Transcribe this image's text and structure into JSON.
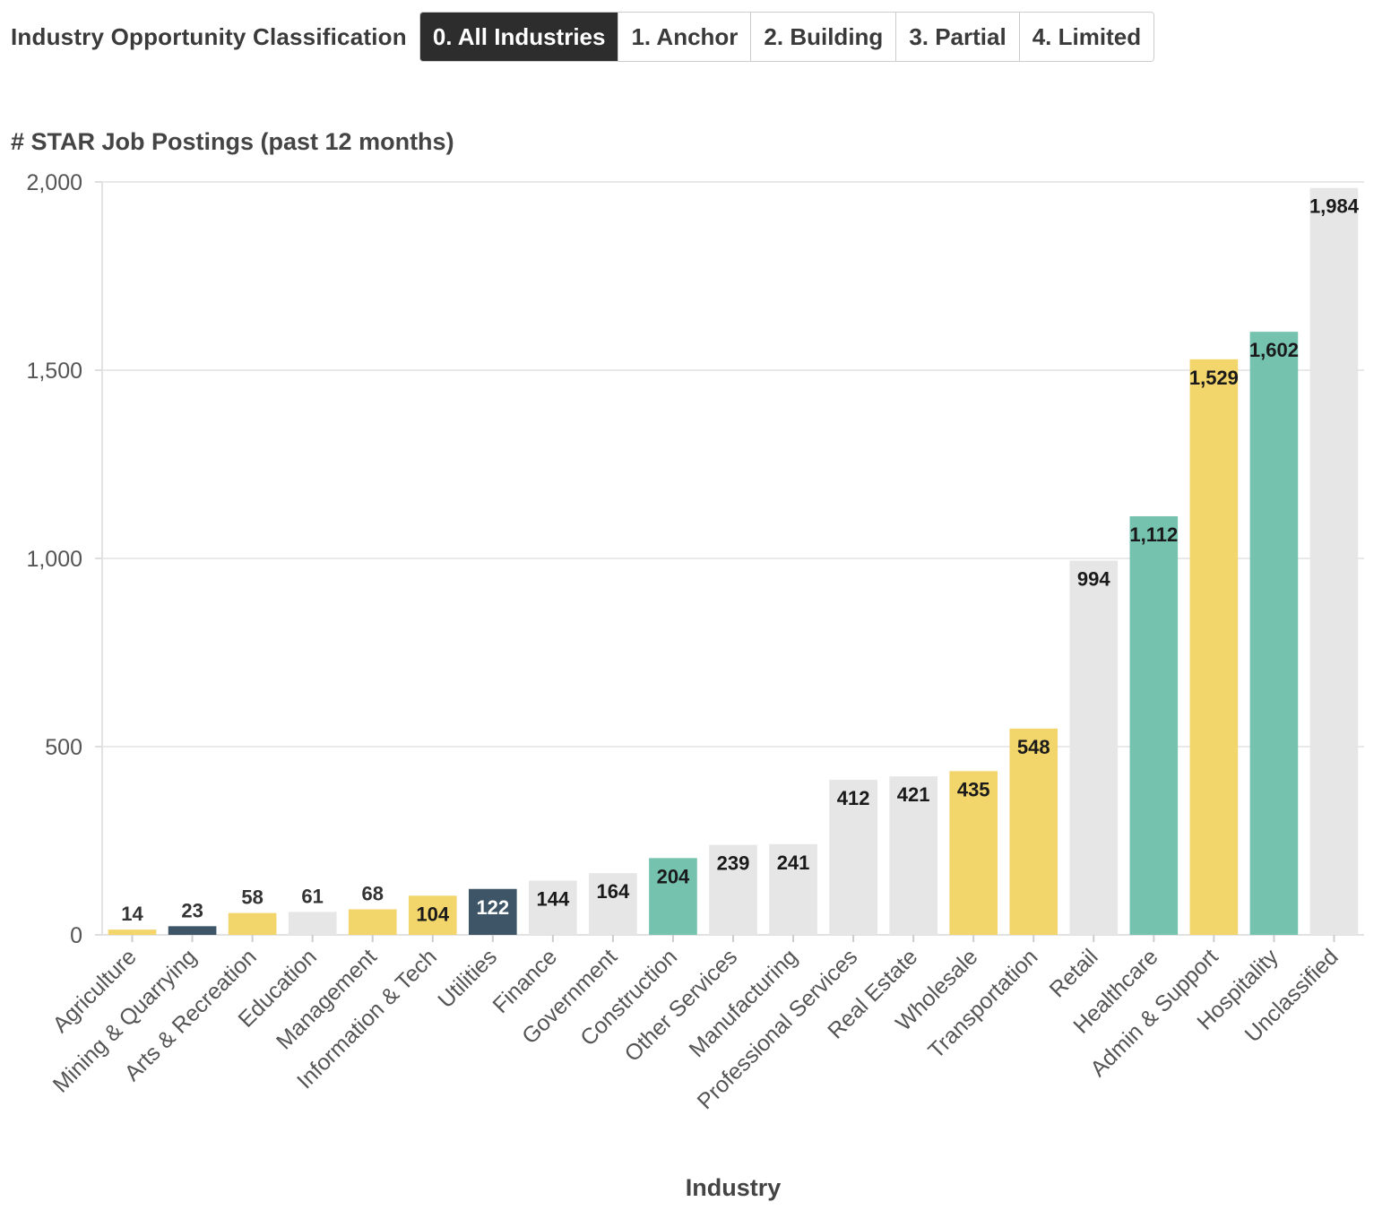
{
  "filter": {
    "label": "Industry Opportunity Classification",
    "options": [
      "0. All Industries",
      "1. Anchor",
      "2. Building",
      "3. Partial",
      "4. Limited"
    ],
    "selected": "0. All Industries"
  },
  "colors": {
    "Anchor": "#75c2af",
    "Building": "#f2d56b",
    "Partial": "#e6e6e6",
    "Limited": "#3d5566",
    "active_button": "#2d2d2d"
  },
  "chart_data": {
    "type": "bar",
    "title": "# STAR Job Postings (past 12 months)",
    "xlabel": "Industry",
    "ylabel": "",
    "ylim": [
      0,
      2000
    ],
    "yticks": [
      0,
      500,
      1000,
      1500,
      2000
    ],
    "ytick_labels": [
      "0",
      "500",
      "1,000",
      "1,500",
      "2,000"
    ],
    "grid": true,
    "categories": [
      "Agriculture",
      "Mining & Quarrying",
      "Arts & Recreation",
      "Education",
      "Management",
      "Information & Tech",
      "Utilities",
      "Finance",
      "Government",
      "Construction",
      "Other Services",
      "Manufacturing",
      "Professional Services",
      "Real Estate",
      "Wholesale",
      "Transportation",
      "Retail",
      "Healthcare",
      "Admin & Support",
      "Hospitality",
      "Unclassified"
    ],
    "values": [
      14,
      23,
      58,
      61,
      68,
      104,
      122,
      144,
      164,
      204,
      239,
      241,
      412,
      421,
      435,
      548,
      994,
      1112,
      1529,
      1602,
      1984
    ],
    "value_labels": [
      "14",
      "23",
      "58",
      "61",
      "68",
      "104",
      "122",
      "144",
      "164",
      "204",
      "239",
      "241",
      "412",
      "421",
      "435",
      "548",
      "994",
      "1,112",
      "1,529",
      "1,602",
      "1,984"
    ],
    "classes": [
      "Building",
      "Limited",
      "Building",
      "Partial",
      "Building",
      "Building",
      "Limited",
      "Partial",
      "Partial",
      "Anchor",
      "Partial",
      "Partial",
      "Partial",
      "Partial",
      "Building",
      "Building",
      "Partial",
      "Anchor",
      "Building",
      "Anchor",
      "Partial"
    ]
  }
}
